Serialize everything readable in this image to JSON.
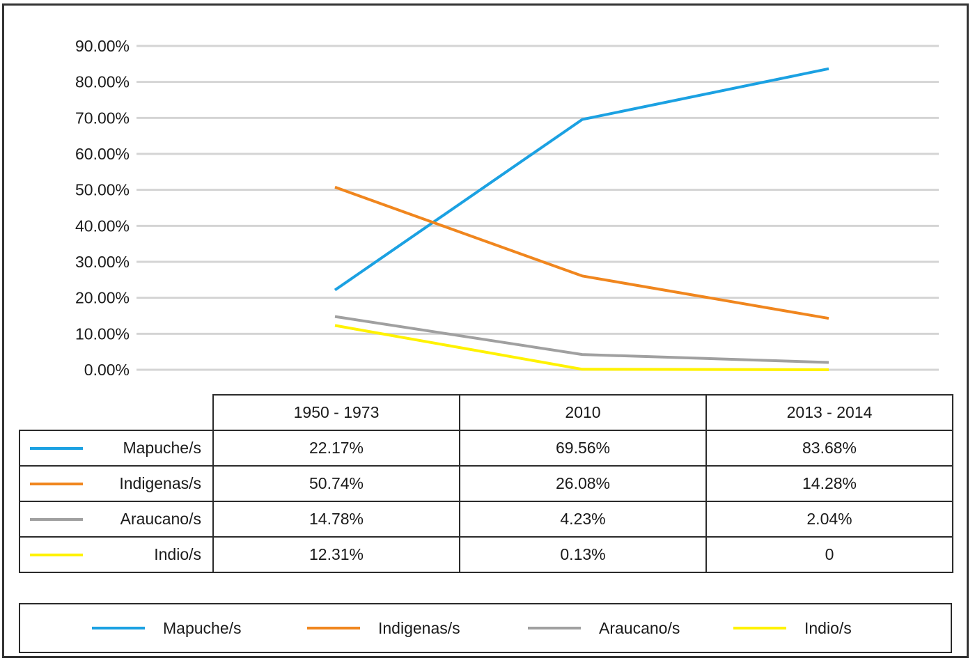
{
  "chart_data": {
    "type": "line",
    "categories": [
      "1950 - 1973",
      "2010",
      "2013 - 2014"
    ],
    "y_ticks": [
      "0.00%",
      "10.00%",
      "20.00%",
      "30.00%",
      "40.00%",
      "50.00%",
      "60.00%",
      "70.00%",
      "80.00%",
      "90.00%"
    ],
    "ylim": [
      0,
      90
    ],
    "grid": true,
    "legend_position": "bottom",
    "series": [
      {
        "name": "Mapuche/s",
        "color": "#1ba1e2",
        "values": [
          22.17,
          69.56,
          83.68
        ],
        "labels": [
          "22.17%",
          "69.56%",
          "83.68%"
        ]
      },
      {
        "name": "Indigenas/s",
        "color": "#f0861e",
        "values": [
          50.74,
          26.08,
          14.28
        ],
        "labels": [
          "50.74%",
          "26.08%",
          "14.28%"
        ]
      },
      {
        "name": "Araucano/s",
        "color": "#a0a0a0",
        "values": [
          14.78,
          4.23,
          2.04
        ],
        "labels": [
          "14.78%",
          "4.23%",
          "2.04%"
        ]
      },
      {
        "name": "Indio/s",
        "color": "#fff200",
        "values": [
          12.31,
          0.13,
          0
        ],
        "labels": [
          "12.31%",
          "0.13%",
          "0"
        ]
      }
    ]
  }
}
